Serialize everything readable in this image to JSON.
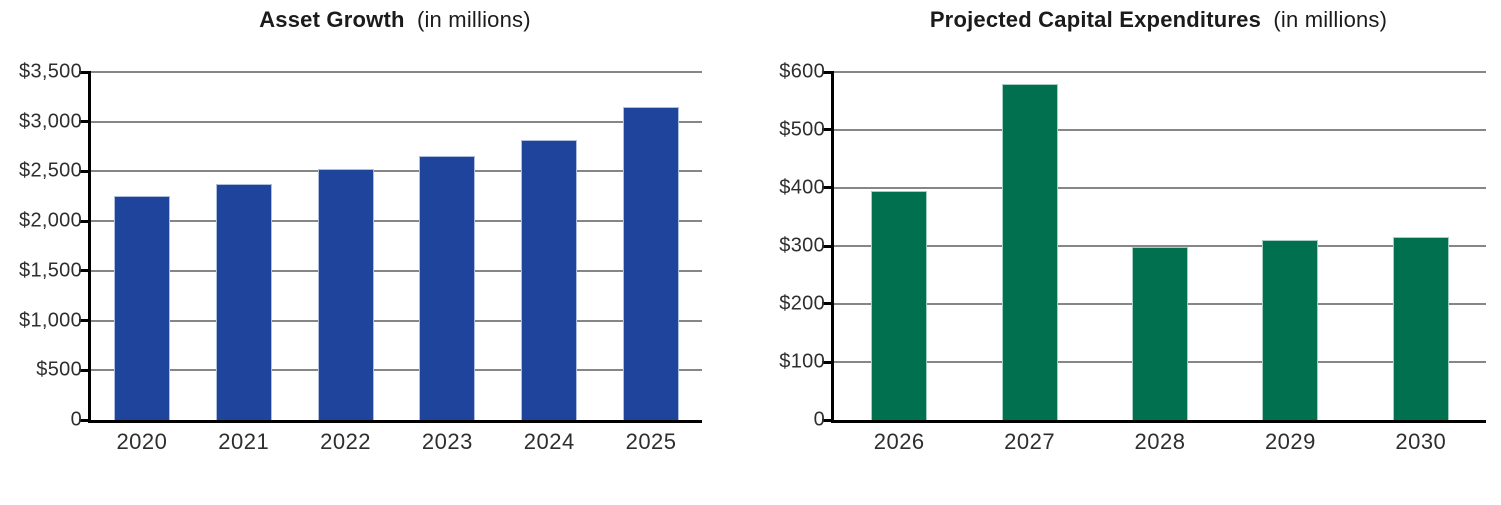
{
  "chart_data": [
    {
      "type": "bar",
      "title": "Asset Growth",
      "subtitle": "(in millions)",
      "categories": [
        "2020",
        "2021",
        "2022",
        "2023",
        "2024",
        "2025"
      ],
      "values": [
        2250,
        2370,
        2520,
        2660,
        2820,
        3150
      ],
      "xlabel": "",
      "ylabel": "",
      "ylim": [
        0,
        3500
      ],
      "ytick_step": 500,
      "ytick_labels": [
        "0",
        "$500",
        "$1,000",
        "$1,500",
        "$2,000",
        "$2,500",
        "$3,000",
        "$3,500"
      ],
      "bar_color": "#1f449c",
      "gridline_color": "#868686",
      "axis_color": "#000000",
      "grid": true,
      "legend": "none"
    },
    {
      "type": "bar",
      "title": "Projected Capital Expenditures",
      "subtitle": "(in millions)",
      "categories": [
        "2026",
        "2027",
        "2028",
        "2029",
        "2030"
      ],
      "values": [
        395,
        580,
        298,
        310,
        315
      ],
      "xlabel": "",
      "ylabel": "",
      "ylim": [
        0,
        600
      ],
      "ytick_step": 100,
      "ytick_labels": [
        "0",
        "$100",
        "$200",
        "$300",
        "$400",
        "$500",
        "$600"
      ],
      "bar_color": "#00704f",
      "gridline_color": "#868686",
      "axis_color": "#000000",
      "grid": true,
      "legend": "none"
    }
  ]
}
